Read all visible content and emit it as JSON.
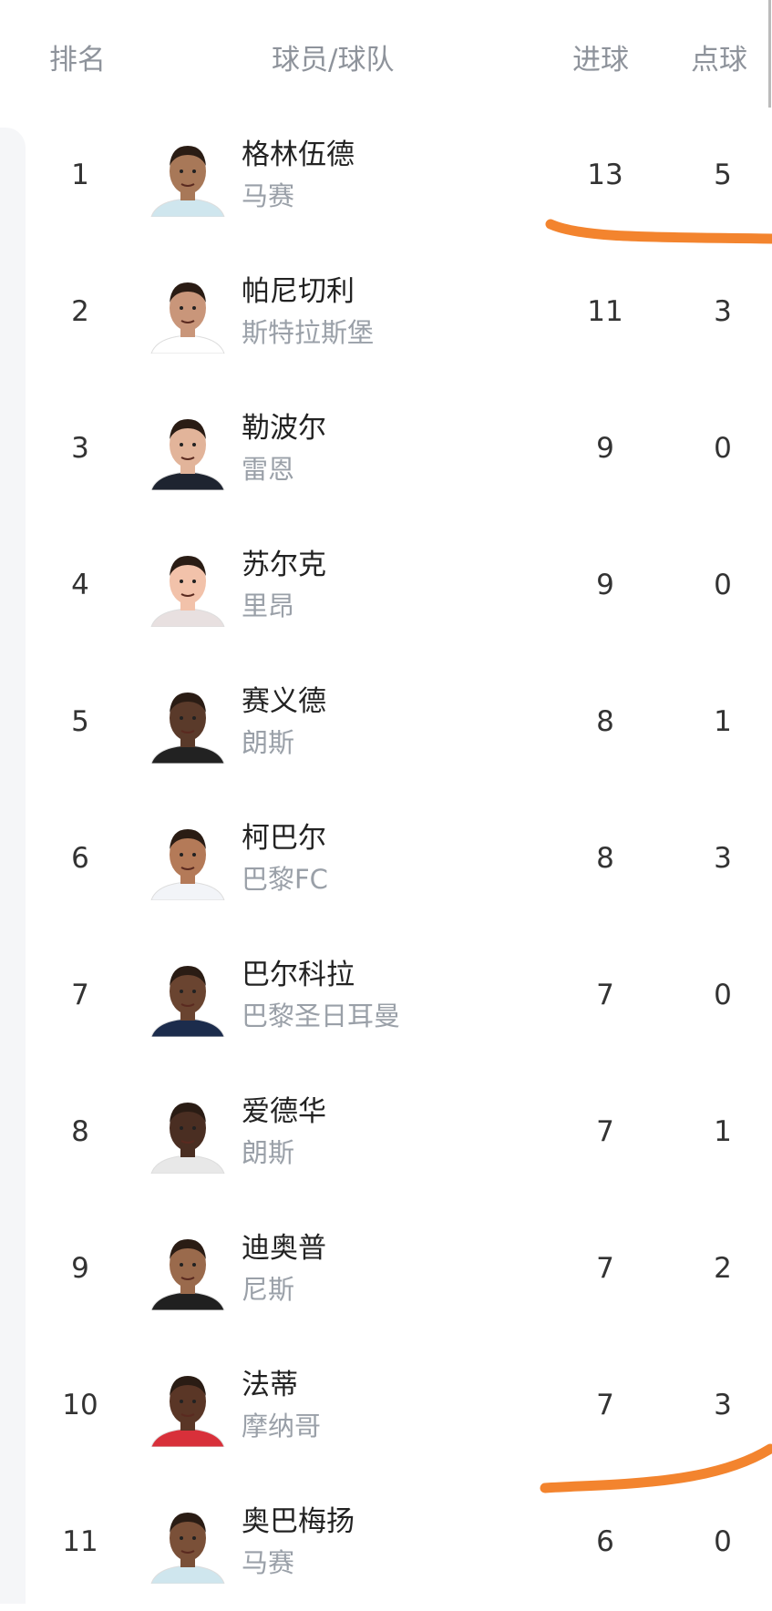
{
  "header": {
    "rank": "排名",
    "player_team": "球员/球队",
    "goals": "进球",
    "penalties": "点球"
  },
  "rows": [
    {
      "rank": "1",
      "name": "格林伍德",
      "team": "马赛",
      "goals": "13",
      "penalties": "5",
      "skin": "#a87858",
      "kit": "#cfe6ee"
    },
    {
      "rank": "2",
      "name": "帕尼切利",
      "team": "斯特拉斯堡",
      "goals": "11",
      "penalties": "3",
      "skin": "#c9967a",
      "kit": "#ffffff"
    },
    {
      "rank": "3",
      "name": "勒波尔",
      "team": "雷恩",
      "goals": "9",
      "penalties": "0",
      "skin": "#e2b49a",
      "kit": "#1e2430"
    },
    {
      "rank": "4",
      "name": "苏尔克",
      "team": "里昂",
      "goals": "9",
      "penalties": "0",
      "skin": "#f2c2aa",
      "kit": "#e8e0e0"
    },
    {
      "rank": "5",
      "name": "赛义德",
      "team": "朗斯",
      "goals": "8",
      "penalties": "1",
      "skin": "#5a3a2a",
      "kit": "#222222"
    },
    {
      "rank": "6",
      "name": "柯巴尔",
      "team": "巴黎FC",
      "goals": "8",
      "penalties": "3",
      "skin": "#b47a58",
      "kit": "#f2f4f8"
    },
    {
      "rank": "7",
      "name": "巴尔科拉",
      "team": "巴黎圣日耳曼",
      "goals": "7",
      "penalties": "0",
      "skin": "#6a4430",
      "kit": "#1c2c4c"
    },
    {
      "rank": "8",
      "name": "爱德华",
      "team": "朗斯",
      "goals": "7",
      "penalties": "1",
      "skin": "#4a2e22",
      "kit": "#e8e8e8"
    },
    {
      "rank": "9",
      "name": "迪奥普",
      "team": "尼斯",
      "goals": "7",
      "penalties": "2",
      "skin": "#9a6a4c",
      "kit": "#202020"
    },
    {
      "rank": "10",
      "name": "法蒂",
      "team": "摩纳哥",
      "goals": "7",
      "penalties": "3",
      "skin": "#5a3626",
      "kit": "#d8303a"
    },
    {
      "rank": "11",
      "name": "奥巴梅扬",
      "team": "马赛",
      "goals": "6",
      "penalties": "0",
      "skin": "#7a5038",
      "kit": "#cfe6ee"
    }
  ],
  "colors": {
    "annotation_stroke": "#f3842e",
    "muted_text": "#9aa0a8"
  }
}
